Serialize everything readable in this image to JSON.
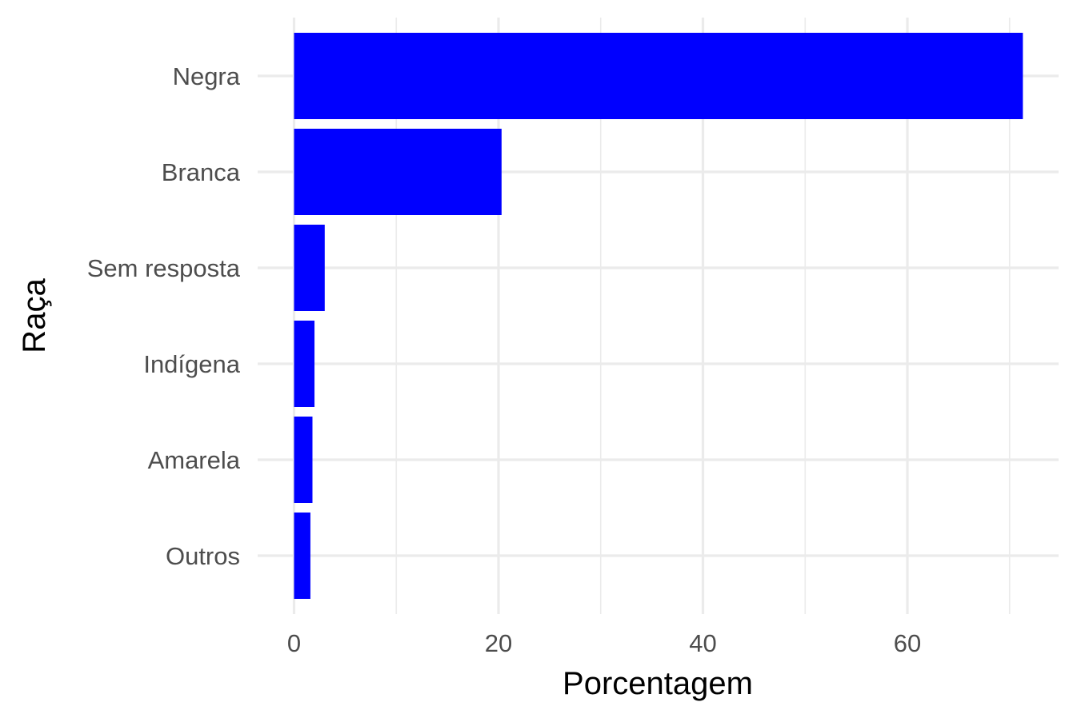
{
  "chart_data": {
    "type": "bar",
    "orientation": "horizontal",
    "categories": [
      "Negra",
      "Branca",
      "Sem resposta",
      "Indígena",
      "Amarela",
      "Outros"
    ],
    "values": [
      71.3,
      20.3,
      3.0,
      2.0,
      1.8,
      1.6
    ],
    "xlabel": "Porcentagem",
    "ylabel": "Raça",
    "xlim": [
      0,
      75
    ],
    "xticks": [
      0,
      20,
      40,
      60
    ],
    "bar_color": "#0000ff",
    "grid": true,
    "legend": "none"
  }
}
